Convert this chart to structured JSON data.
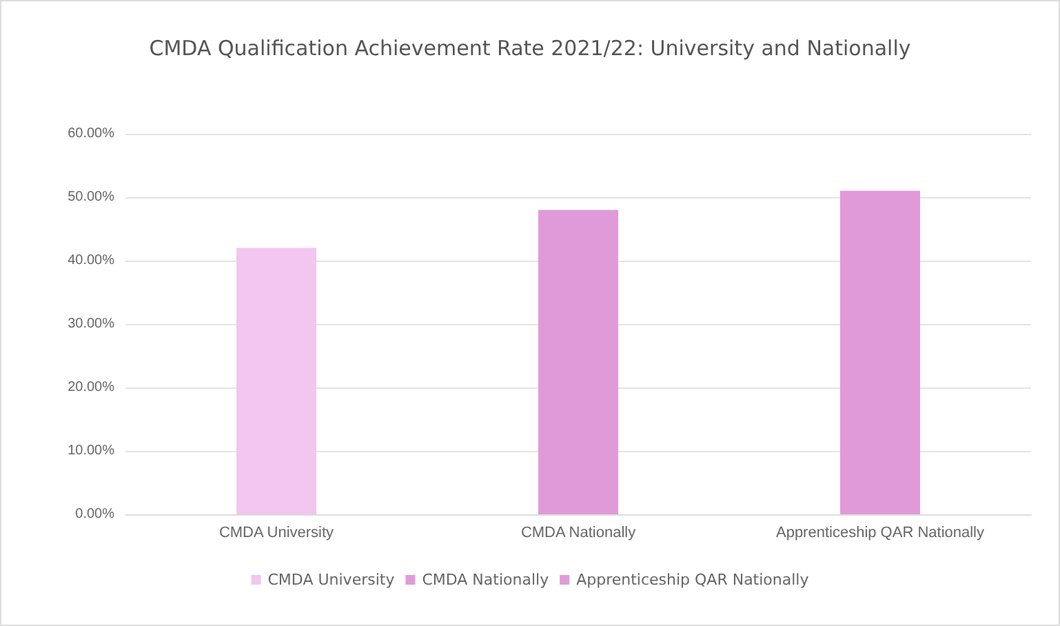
{
  "chart_data": {
    "type": "bar",
    "title": "CMDA Qualification Achievement Rate 2021/22: University and Nationally",
    "categories": [
      "CMDA University",
      "CMDA Nationally",
      "Apprenticeship QAR Nationally"
    ],
    "series": [
      {
        "name": "CMDA University",
        "color": "#f2c6ee",
        "values": [
          42,
          null,
          null
        ]
      },
      {
        "name": "CMDA Nationally",
        "color": "#e09ad9",
        "values": [
          null,
          48,
          null
        ]
      },
      {
        "name": "Apprenticeship QAR Nationally",
        "color": "#e09ad9",
        "values": [
          null,
          null,
          51
        ]
      }
    ],
    "ylim": [
      0,
      60
    ],
    "yticks": [
      {
        "value": 0,
        "label": "0.00%"
      },
      {
        "value": 10,
        "label": "10.00%"
      },
      {
        "value": 20,
        "label": "20.00%"
      },
      {
        "value": 30,
        "label": "30.00%"
      },
      {
        "value": 40,
        "label": "40.00%"
      },
      {
        "value": 50,
        "label": "50.00%"
      },
      {
        "value": 60,
        "label": "60.00%"
      }
    ],
    "grid": "y",
    "legend": "bottom"
  }
}
